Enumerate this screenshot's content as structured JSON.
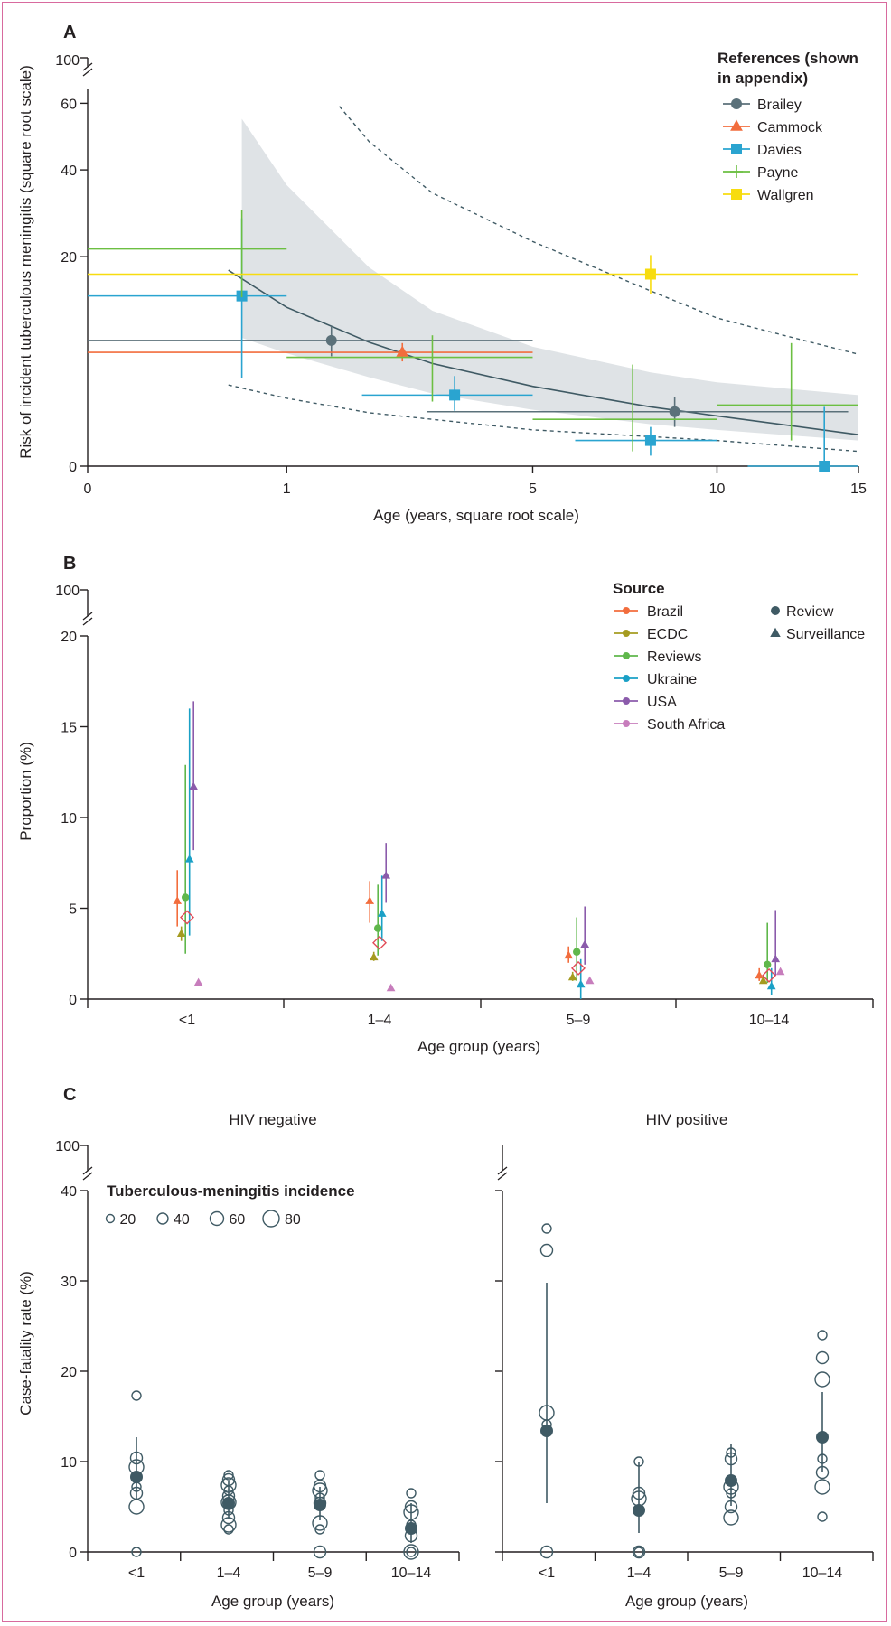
{
  "colors": {
    "Brailey": "#5b717a",
    "Cammock": "#f26d3d",
    "Davies": "#2aa4d0",
    "Payne": "#6cbf42",
    "Wallgren": "#f7dc0f",
    "Brazil": "#f26d3d",
    "ECDC": "#a59b20",
    "Reviews": "#5fb74b",
    "Ukraine": "#1aa0c6",
    "USA": "#8b5bab",
    "South Africa": "#c77dbc",
    "pooled": "#e14b57",
    "dark": "#3f5a64",
    "axis": "#231f20",
    "band": "#dfe3e6"
  },
  "chart_data": [
    {
      "panel": "A",
      "type": "scatter",
      "xscale": "sqrt",
      "yscale": "sqrt",
      "xlabel": "Age (years, square root scale)",
      "ylabel": "Risk of incident tuberculous meningitis (square root scale)",
      "xticks": [
        0,
        1,
        5,
        10,
        15
      ],
      "yticks": [
        0,
        20,
        40,
        60
      ],
      "ybreak_label": "100",
      "xlim": [
        0,
        15
      ],
      "ylim": [
        0,
        65
      ],
      "legend_title": "References (shown in appendix)",
      "legend": [
        {
          "name": "Brailey",
          "marker": "circle"
        },
        {
          "name": "Cammock",
          "marker": "triangle"
        },
        {
          "name": "Davies",
          "marker": "square"
        },
        {
          "name": "Payne",
          "marker": "plus"
        },
        {
          "name": "Wallgren",
          "marker": "square"
        }
      ],
      "points": [
        {
          "series": "Brailey",
          "x": 1.5,
          "y": 7.2,
          "xlo": 0,
          "xhi": 5,
          "ylo": 5.5,
          "yhi": 8.9
        },
        {
          "series": "Brailey",
          "x": 8.7,
          "y": 1.35,
          "xlo": 2.9,
          "xhi": 14.6,
          "ylo": 0.7,
          "yhi": 2.2
        },
        {
          "series": "Cammock",
          "x": 2.5,
          "y": 5.9,
          "xlo": 0,
          "xhi": 5,
          "ylo": 5.0,
          "yhi": 6.9
        },
        {
          "series": "Davies",
          "x": 0.6,
          "y": 13.2,
          "xlo": 0,
          "xhi": 1,
          "ylo": 3.5,
          "yhi": 28
        },
        {
          "series": "Davies",
          "x": 3.4,
          "y": 2.3,
          "xlo": 1.9,
          "xhi": 5,
          "ylo": 1.4,
          "yhi": 3.7
        },
        {
          "series": "Davies",
          "x": 8.0,
          "y": 0.3,
          "xlo": 6.0,
          "xhi": 10,
          "ylo": 0.05,
          "yhi": 0.7
        },
        {
          "series": "Davies",
          "x": 13.7,
          "y": 0.0,
          "xlo": 11,
          "xhi": 15,
          "ylo": 0.0,
          "yhi": 1.6
        },
        {
          "series": "Payne",
          "x": 0.6,
          "y": 21.5,
          "xlo": 0,
          "xhi": 1,
          "ylo": 13,
          "yhi": 30
        },
        {
          "series": "Payne",
          "x": 3.0,
          "y": 5.4,
          "xlo": 1,
          "xhi": 5,
          "ylo": 1.9,
          "yhi": 7.8
        },
        {
          "series": "Payne",
          "x": 7.5,
          "y": 1.0,
          "xlo": 5,
          "xhi": 10,
          "ylo": 0.1,
          "yhi": 4.7
        },
        {
          "series": "Payne",
          "x": 12.5,
          "y": 1.7,
          "xlo": 10,
          "xhi": 15,
          "ylo": 0.3,
          "yhi": 6.9
        },
        {
          "series": "Wallgren",
          "x": 8.0,
          "y": 16.8,
          "xlo": 0,
          "xhi": 15,
          "ylo": 13.5,
          "yhi": 20.3
        }
      ],
      "fit": {
        "x": [
          0.5,
          1,
          2,
          3,
          5,
          8,
          10,
          15
        ],
        "y": [
          17.5,
          11.5,
          7.0,
          4.8,
          2.9,
          1.6,
          1.15,
          0.45
        ]
      },
      "fit_upper": {
        "x": [
          1.6,
          2,
          3,
          5,
          8,
          10,
          12,
          15
        ],
        "y": [
          59,
          48,
          34,
          23,
          14,
          10,
          8,
          5.7
        ]
      },
      "fit_lower": {
        "x": [
          0.5,
          1,
          2,
          5,
          10,
          15
        ],
        "y": [
          3.0,
          2.1,
          1.3,
          0.6,
          0.3,
          0.1
        ]
      },
      "band_upper": {
        "x": [
          0.6,
          1,
          2,
          3,
          5,
          8,
          10,
          15
        ],
        "y": [
          55,
          36,
          18,
          11,
          6.5,
          4.0,
          3.2,
          2.3
        ]
      },
      "band_lower": {
        "x": [
          0.6,
          1,
          2,
          3,
          5,
          8,
          10,
          15
        ],
        "y": [
          7.5,
          5.8,
          3.6,
          2.4,
          1.45,
          0.8,
          0.6,
          0.3
        ]
      }
    },
    {
      "panel": "B",
      "type": "scatter",
      "xlabel": "Age group (years)",
      "ylabel": "Proportion (%)",
      "categories": [
        "<1",
        "1–4",
        "5–9",
        "10–14"
      ],
      "yticks": [
        0,
        5,
        10,
        15,
        20
      ],
      "ybreak_label": "100",
      "ylim": [
        0,
        20
      ],
      "legend_title": "Source",
      "legend_sources": [
        "Brazil",
        "ECDC",
        "Reviews",
        "Ukraine",
        "USA",
        "South Africa"
      ],
      "legend_types": [
        {
          "name": "Review",
          "marker": "circle"
        },
        {
          "name": "Surveillance",
          "marker": "triangle"
        }
      ],
      "series": [
        {
          "name": "Brazil",
          "marker": "triangle",
          "offset": -0.12,
          "values": [
            5.4,
            5.4,
            2.4,
            1.3
          ],
          "lo": [
            4.0,
            4.2,
            2.0,
            1.0
          ],
          "hi": [
            7.1,
            6.5,
            2.9,
            1.7
          ]
        },
        {
          "name": "ECDC",
          "marker": "triangle",
          "offset": -0.07,
          "values": [
            3.6,
            2.3,
            1.2,
            1.0
          ],
          "lo": [
            3.2,
            2.1,
            1.0,
            0.9
          ],
          "hi": [
            4.0,
            2.6,
            1.5,
            1.2
          ]
        },
        {
          "name": "Reviews",
          "marker": "circle",
          "offset": -0.02,
          "values": [
            5.6,
            3.9,
            2.6,
            1.9
          ],
          "lo": [
            2.5,
            2.4,
            1.0,
            0.9
          ],
          "hi": [
            12.9,
            6.3,
            4.5,
            4.2
          ]
        },
        {
          "name": "Ukraine",
          "marker": "triangle",
          "offset": 0.03,
          "values": [
            7.7,
            4.7,
            0.8,
            0.7
          ],
          "lo": [
            3.5,
            3.2,
            0.0,
            0.2
          ],
          "hi": [
            16.0,
            6.8,
            2.2,
            1.7
          ]
        },
        {
          "name": "USA",
          "marker": "triangle",
          "offset": 0.08,
          "values": [
            11.7,
            6.8,
            3.0,
            2.2
          ],
          "lo": [
            8.2,
            5.3,
            1.9,
            1.3
          ],
          "hi": [
            16.4,
            8.6,
            5.1,
            4.9
          ]
        },
        {
          "name": "South Africa",
          "marker": "triangle",
          "offset": 0.14,
          "values": [
            0.9,
            0.6,
            1.0,
            1.5
          ],
          "lo": [
            null,
            null,
            null,
            null
          ],
          "hi": [
            null,
            null,
            null,
            null
          ]
        }
      ],
      "pooled": {
        "name": "pooled",
        "offset": 0.0,
        "values": [
          4.5,
          3.1,
          1.7,
          1.3
        ]
      }
    },
    {
      "panel": "C",
      "type": "scatter",
      "facets": [
        "HIV negative",
        "HIV positive"
      ],
      "xlabel": "Age group (years)",
      "ylabel": "Case-fatality rate (%)",
      "categories": [
        "<1",
        "1–4",
        "5–9",
        "10–14"
      ],
      "yticks": [
        0,
        10,
        20,
        30,
        40
      ],
      "ybreak_label": "100",
      "ylim": [
        0,
        40
      ],
      "size_legend_title": "Tuberculous-meningitis incidence",
      "size_legend": [
        20,
        40,
        60,
        80
      ],
      "hiv_negative": {
        "study_points": [
          [
            17.3,
            10.4,
            9.4,
            7.2,
            6.5,
            5.0,
            0.0
          ],
          [
            8.5,
            8.0,
            7.4,
            6.8,
            6.2,
            5.5,
            4.6,
            3.8,
            3.0,
            2.5
          ],
          [
            8.5,
            7.3,
            6.8,
            6.0,
            5.4,
            3.2,
            2.5,
            0.0
          ],
          [
            6.5,
            5.0,
            4.4,
            3.0,
            1.8,
            0.0,
            0.0
          ]
        ],
        "pooled": [
          8.3,
          5.4,
          5.2,
          2.6
        ],
        "lo": [
          5.7,
          3.6,
          3.5,
          1.0
        ],
        "hi": [
          12.7,
          7.8,
          7.2,
          5.4
        ]
      },
      "hiv_positive": {
        "study_points": [
          [
            35.8,
            33.4,
            15.4,
            14.1,
            0.0
          ],
          [
            10.0,
            6.5,
            5.9,
            0.0,
            0.0
          ],
          [
            11.0,
            10.3,
            7.2,
            6.5,
            5.0,
            3.8
          ],
          [
            24.0,
            21.5,
            19.1,
            10.3,
            8.8,
            7.2,
            3.9
          ]
        ],
        "pooled": [
          13.4,
          4.6,
          7.9,
          12.7
        ],
        "lo": [
          5.4,
          2.1,
          5.1,
          8.8
        ],
        "hi": [
          29.8,
          10.0,
          12.0,
          17.7
        ]
      }
    }
  ]
}
